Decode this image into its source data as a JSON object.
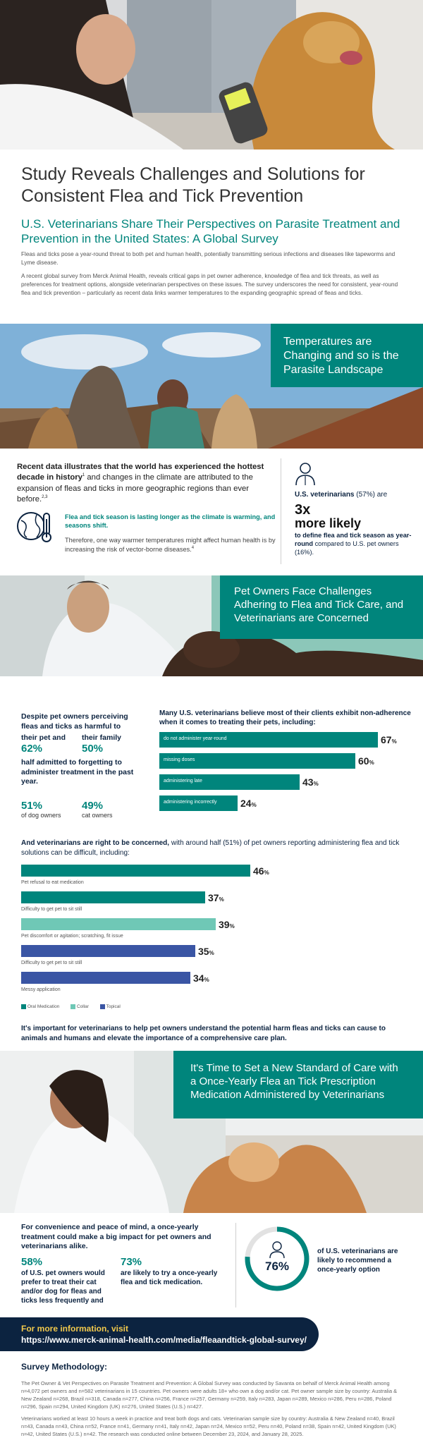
{
  "header": {
    "title": "Study Reveals Challenges and Solutions for Consistent Flea and Tick Prevention",
    "subtitle": "U.S. Veterinarians Share Their Perspectives on Parasite Treatment and Prevention in the United States: A Global Survey",
    "intro_p1": "Fleas and ticks pose a year-round threat to both pet and human health, potentially transmitting serious infections and diseases like tapeworms and Lyme disease.",
    "intro_p2": "A recent global survey from Merck Animal Health, reveals critical gaps in pet owner adherence, knowledge of flea and tick threats, as well as preferences for treatment options, alongside veterinarian perspectives on these issues. The survey underscores the need for consistent, year-round flea and tick prevention – particularly as recent data links warmer temperatures to the expanding geographic spread of fleas and ticks."
  },
  "section1": {
    "banner": "Temperatures are Changing and so is the Parasite Landscape",
    "climate_lead_bold1": "Recent data illustrates that the world has experienced the ",
    "climate_lead_bold2": "hottest decade in history",
    "climate_lead_sup1": "1",
    "climate_lead_rest": " and changes in the climate are attributed to the expansion of fleas and ticks in more geographic regions than ever before.",
    "climate_lead_sup2": "2,3",
    "season_text": "Flea and tick season is lasting longer as the climate is warming, and seasons shift.",
    "risk_text": "Therefore, one way warmer temperatures might affect human health is by increasing the risk of vector-borne diseases.",
    "risk_sup": "4",
    "vet_label": "U.S. veterinarians",
    "vet_pct": "(57%) are",
    "vet_mult": "3x",
    "vet_more": "more likely",
    "vet_define": "to define flea and tick season as year-round",
    "vet_compare": " compared to U.S. pet owners (16%)."
  },
  "section2": {
    "banner": "Pet Owners Face Challenges Adhering to Flea and Tick Care, and Veterinarians are Concerned",
    "perceive_head": "Despite pet owners perceiving fleas and ticks as harmful to",
    "their_pet_label": "their pet and",
    "their_pet_pct": "62%",
    "family_label": "their family",
    "family_pct": "50%",
    "forget_text": "half admitted to forgetting to administer treatment in the past year.",
    "dog_pct": "51%",
    "dog_label": "of dog owners",
    "cat_pct": "49%",
    "cat_label": "cat owners",
    "nonadherence_head": "Many U.S. veterinarians believe most of their clients exhibit non-adherence when it comes to treating their pets, including:",
    "difficulty_head_bold": "And veterinarians are right to be concerned,",
    "difficulty_head_rest": " with around half (51%) of pet owners reporting administering flea and tick solutions can be difficult, including:",
    "legend_oral": "Oral Medication",
    "legend_collar": "Collar",
    "legend_topical": "Topical",
    "important_text": "It's important for veterinarians to help pet owners understand the potential harm fleas and ticks can cause to animals and humans and elevate the importance of a comprehensive care plan."
  },
  "chart_data": [
    {
      "type": "bar",
      "categories": [
        "do not administer year-round",
        "missing doses",
        "administering late",
        "administering incorrectly"
      ],
      "values": [
        67,
        60,
        43,
        24
      ],
      "unit": "%",
      "title": "Many U.S. veterinarians believe most of their clients exhibit non-adherence when it comes to treating their pets, including:"
    },
    {
      "type": "bar",
      "categories": [
        "Pet refusal to eat medication",
        "Difficulty to get pet to sit still",
        "Pet discomfort or agitation; scratching, fit issue",
        "Difficulty to get pet to sit still",
        "Messy application"
      ],
      "values": [
        46,
        37,
        39,
        35,
        34
      ],
      "series_types": [
        "Oral Medication",
        "Oral Medication",
        "Collar",
        "Topical",
        "Topical"
      ],
      "colors": [
        "#00857c",
        "#00857c",
        "#6fc8b6",
        "#3a55a4",
        "#3a55a4"
      ],
      "unit": "%"
    }
  ],
  "section3": {
    "banner": "It's Time to Set a New Standard of Care with a Once-Yearly Flea an Tick Prescription Medication Administered by Veterinarians",
    "convenience": "For convenience and peace of mind, a once-yearly treatment could make a big impact for pet owners and veterinarians alike.",
    "stat1_pct": "58%",
    "stat1_text": "of U.S. pet owners would prefer to treat their cat and/or dog for fleas and ticks less frequently and",
    "stat2_pct": "73%",
    "stat2_text": "are likely to try a once-yearly flea and tick medication.",
    "ring_pct": "76%",
    "ring_value": 76,
    "ring_text": "of U.S. veterinarians are likely to recommend a once-yearly option"
  },
  "footer": {
    "more_info": "For more information, visit",
    "url": "https://www.merck-animal-health.com/media/fleaandtick-global-survey/",
    "method_title": "Survey Methodology:",
    "method_p1": "The Pet Owner & Vet Perspectives on Parasite Treatment and Prevention: A Global Survey was conducted by Savanta on behalf of Merck Animal Health among n=4,072 pet owners and n=582 veterinarians in 15 countries. Pet owners were adults 18+ who own a dog and/or cat. Pet owner sample size by country: Australia & New Zealand n=268, Brazil n=318, Canada n=277, China n=256, France n=257, Germany n=259, Italy n=283, Japan n=289, Mexico n=286, Peru n=286, Poland n=296, Spain n=294, United Kingdom (UK) n=276, United States (U.S.) n=427.",
    "method_p2": "Veterinarians worked at least 10 hours a week in practice and treat both dogs and cats. Veterinarian sample size by country: Australia & New Zealand n=40, Brazil n=43, Canada n=43, China n=52, France n=41, Germany n=41, Italy n=42, Japan n=24, Mexico n=52, Peru n=40, Poland n=38, Spain n=42, United Kingdom (UK) n=42, United States (U.S.) n=42. The research was conducted online between December 23, 2024, and January 28, 2025."
  },
  "colors": {
    "teal": "#00857c",
    "light_teal": "#6fc8b6",
    "blue": "#3a55a4",
    "navy": "#0c2340"
  }
}
